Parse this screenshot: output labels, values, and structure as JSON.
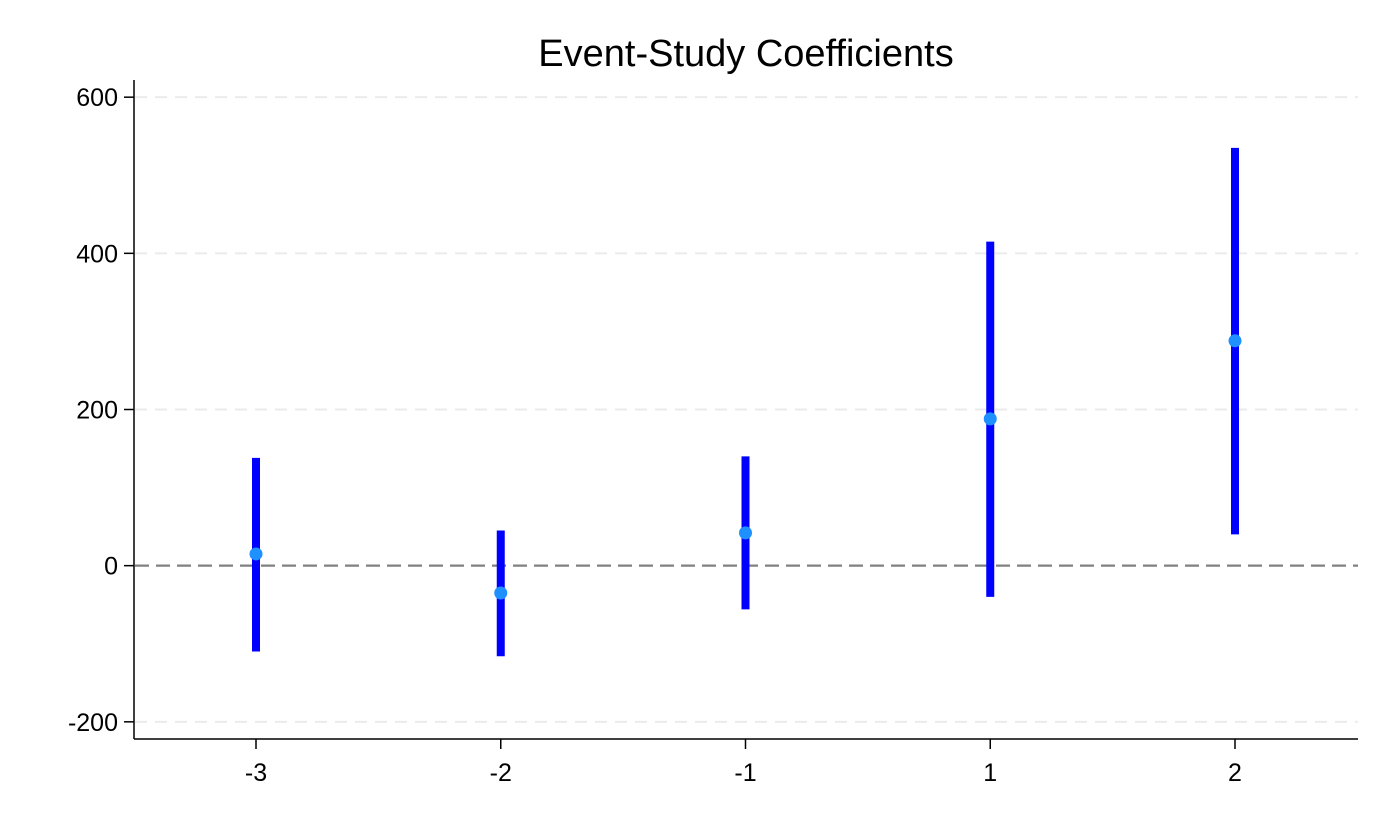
{
  "chart_data": {
    "type": "scatter",
    "title": "Event-Study Coefficients",
    "xlabel": "",
    "ylabel": "",
    "categories": [
      "-3",
      "-2",
      "-1",
      "1",
      "2"
    ],
    "series": [
      {
        "estimates": [
          15,
          -35,
          42,
          188,
          288
        ],
        "ci_lower": [
          -110,
          -116,
          -56,
          -40,
          40
        ],
        "ci_upper": [
          138,
          45,
          140,
          415,
          535
        ]
      }
    ],
    "ylim": [
      -222,
      622
    ],
    "yticks": [
      -200,
      0,
      200,
      400,
      600
    ],
    "grid": true,
    "reference_line_y": 0,
    "colors": {
      "ci_bar": "#0000ff",
      "point": "#1e90ff",
      "grid": "#ebebeb",
      "reference_line": "#808080",
      "axis": "#000000"
    }
  }
}
